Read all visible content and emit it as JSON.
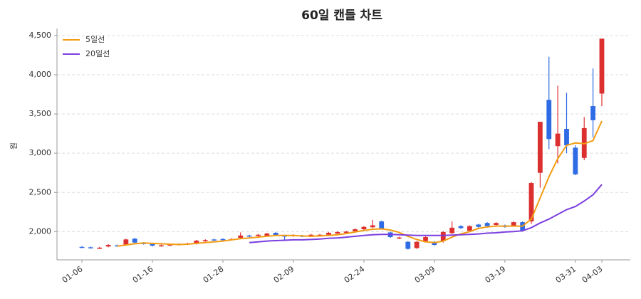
{
  "chart_data": {
    "type": "candlestick",
    "title": "60일 캔들 차트",
    "y_label": "원",
    "categories": [
      "01-06",
      null,
      null,
      null,
      null,
      null,
      null,
      null,
      "01-16",
      null,
      null,
      null,
      null,
      null,
      null,
      null,
      "01-28",
      null,
      null,
      null,
      null,
      null,
      null,
      null,
      "02-09",
      null,
      null,
      null,
      null,
      null,
      null,
      null,
      "02-24",
      null,
      null,
      null,
      null,
      null,
      null,
      null,
      "03-09",
      null,
      null,
      null,
      null,
      null,
      null,
      null,
      "03-19",
      null,
      null,
      null,
      null,
      null,
      null,
      null,
      "03-31",
      null,
      null,
      "04-03"
    ],
    "open": [
      1805,
      1800,
      1788,
      1810,
      1825,
      1830,
      1910,
      1855,
      1840,
      1818,
      1828,
      1835,
      1842,
      1845,
      1880,
      1900,
      1905,
      1900,
      1920,
      1950,
      1945,
      1945,
      1985,
      1950,
      1945,
      1948,
      1940,
      1950,
      1960,
      1975,
      1985,
      2005,
      2030,
      2055,
      2130,
      1990,
      1915,
      1870,
      1790,
      1880,
      1870,
      1880,
      1980,
      2070,
      2010,
      2090,
      2110,
      2085,
      2080,
      2070,
      2120,
      2130,
      2750,
      3680,
      3090,
      3310,
      3070,
      2940,
      3600,
      3760
    ],
    "high": [
      1815,
      1810,
      1805,
      1840,
      1835,
      1910,
      1920,
      1865,
      1850,
      1835,
      1845,
      1850,
      1858,
      1895,
      1902,
      1910,
      1915,
      1915,
      1990,
      1960,
      1970,
      1985,
      1995,
      1960,
      1965,
      1958,
      1970,
      1970,
      1995,
      2005,
      2010,
      2040,
      2070,
      2150,
      2140,
      2000,
      1935,
      1880,
      1880,
      1940,
      1880,
      2005,
      2130,
      2080,
      2080,
      2100,
      2120,
      2120,
      2090,
      2130,
      2130,
      2630,
      3400,
      4230,
      3860,
      3770,
      3100,
      3460,
      4080,
      4460
    ],
    "low": [
      1795,
      1785,
      1778,
      1800,
      1808,
      1820,
      1850,
      1835,
      1810,
      1808,
      1818,
      1825,
      1832,
      1835,
      1870,
      1882,
      1885,
      1890,
      1910,
      1930,
      1935,
      1935,
      1945,
      1880,
      1935,
      1930,
      1930,
      1940,
      1950,
      1965,
      1975,
      1995,
      2020,
      2045,
      2030,
      1920,
      1905,
      1770,
      1780,
      1870,
      1820,
      1860,
      1970,
      2035,
      2000,
      2050,
      2060,
      2075,
      2050,
      2060,
      2000,
      2100,
      2560,
      3050,
      2870,
      3000,
      2720,
      2910,
      3200,
      3600
    ],
    "close": [
      1800,
      1795,
      1795,
      1830,
      1818,
      1900,
      1860,
      1845,
      1820,
      1825,
      1835,
      1840,
      1848,
      1885,
      1892,
      1892,
      1895,
      1905,
      1950,
      1940,
      1960,
      1975,
      1955,
      1945,
      1955,
      1940,
      1960,
      1960,
      1985,
      1995,
      2000,
      2030,
      2060,
      2080,
      2040,
      1930,
      1925,
      1780,
      1870,
      1930,
      1830,
      1995,
      2050,
      2045,
      2070,
      2060,
      2070,
      2110,
      2060,
      2120,
      2010,
      2620,
      3400,
      3180,
      3250,
      3100,
      2730,
      3320,
      3420,
      4460
    ],
    "up_color": "#dc2f2f",
    "down_color": "#2f6be4",
    "series": [
      {
        "name": "5일선",
        "color": "#f39c12",
        "values": [
          null,
          null,
          null,
          null,
          1815,
          1830,
          1845,
          1855,
          1850,
          1845,
          1840,
          1835,
          1840,
          1850,
          1860,
          1870,
          1880,
          1895,
          1910,
          1920,
          1930,
          1940,
          1950,
          1950,
          1950,
          1945,
          1940,
          1945,
          1950,
          1960,
          1975,
          1995,
          2015,
          2030,
          2035,
          2020,
          1990,
          1940,
          1900,
          1870,
          1860,
          1880,
          1930,
          1970,
          2000,
          2040,
          2060,
          2070,
          2070,
          2070,
          2070,
          2160,
          2430,
          2700,
          2930,
          3100,
          3130,
          3120,
          3160,
          3410
        ]
      },
      {
        "name": "20일선",
        "color": "#7b3fe0",
        "values": [
          null,
          null,
          null,
          null,
          null,
          null,
          null,
          null,
          null,
          null,
          null,
          null,
          null,
          null,
          null,
          null,
          null,
          null,
          null,
          1860,
          1870,
          1880,
          1885,
          1890,
          1895,
          1895,
          1900,
          1905,
          1915,
          1920,
          1930,
          1940,
          1950,
          1960,
          1965,
          1965,
          1960,
          1955,
          1950,
          1950,
          1950,
          1950,
          1955,
          1960,
          1965,
          1970,
          1980,
          1985,
          1995,
          2000,
          2010,
          2050,
          2110,
          2160,
          2220,
          2280,
          2320,
          2390,
          2470,
          2600
        ]
      }
    ],
    "ylim": [
      1640,
      4590
    ],
    "yticks": [
      {
        "value": 2000,
        "label": "2,000"
      },
      {
        "value": 2500,
        "label": "2,500"
      },
      {
        "value": 3000,
        "label": "3,000"
      },
      {
        "value": 3500,
        "label": "3,500"
      },
      {
        "value": 4000,
        "label": "4,000"
      },
      {
        "value": 4500,
        "label": "4,500"
      }
    ],
    "grid": true,
    "legend": "upper left"
  }
}
